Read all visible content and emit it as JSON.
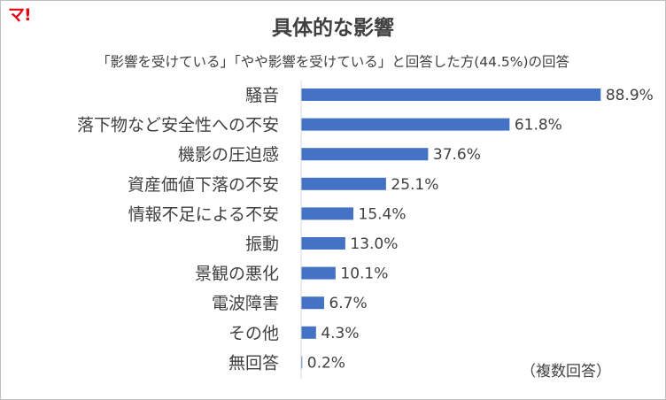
{
  "logo": {
    "text": "マ!"
  },
  "header": {
    "title": "具体的な影響",
    "subtitle": "「影響を受けている」「やや影響を受けている」と回答した方(44.5%)の回答"
  },
  "note": "（複数回答）",
  "colors": {
    "bar": "#4472c4",
    "axis": "#d9d9d9",
    "text": "#404040",
    "logo": "#e60012"
  },
  "chart_data": {
    "type": "bar",
    "orientation": "horizontal",
    "categories": [
      "騒音",
      "落下物など安全性への不安",
      "機影の圧迫感",
      "資産価値下落の不安",
      "情報不足による不安",
      "振動",
      "景観の悪化",
      "電波障害",
      "その他",
      "無回答"
    ],
    "values": [
      88.9,
      61.8,
      37.6,
      25.1,
      15.4,
      13.0,
      10.1,
      6.7,
      4.3,
      0.2
    ],
    "value_labels": [
      "88.9%",
      "61.8%",
      "37.6%",
      "25.1%",
      "15.4%",
      "13.0%",
      "10.1%",
      "6.7%",
      "4.3%",
      "0.2%"
    ],
    "unit": "%",
    "xlim": [
      0,
      100
    ],
    "grid": false,
    "legend": "none"
  }
}
